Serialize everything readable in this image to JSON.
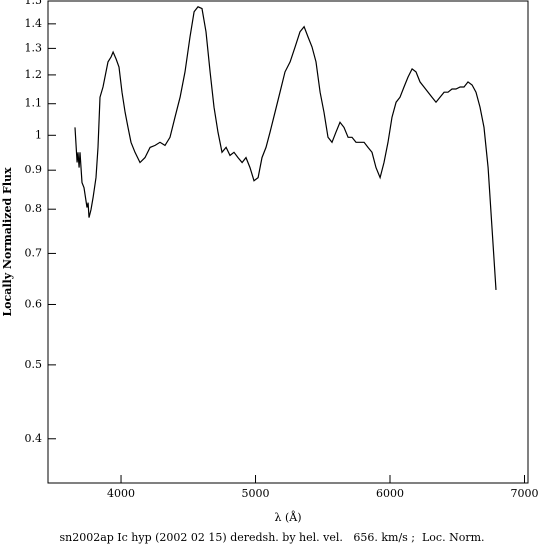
{
  "chart_data": {
    "type": "line",
    "caption": "sn2002ap Ic hyp (2002 02 15) deredsh. by hel. vel.   656. km/s ;  Loc. Norm.",
    "x_label": "λ (Å)",
    "y_label": "Locally Normalized Flux",
    "y_scale": "log",
    "xlim": [
      3457,
      7026
    ],
    "ylim": [
      0.35,
      1.5
    ],
    "xticks": [
      4000,
      5000,
      6000,
      7000
    ],
    "yticks": [
      0.4,
      0.5,
      0.6,
      0.7,
      0.8,
      0.9,
      1,
      1.1,
      1.2,
      1.3,
      1.4,
      1.5
    ],
    "series": [
      {
        "color": "#000000",
        "x": [
          3658,
          3673,
          3680,
          3688,
          3695,
          3710,
          3725,
          3747,
          3755,
          3762,
          3777,
          3792,
          3814,
          3829,
          3844,
          3866,
          3888,
          3903,
          3926,
          3941,
          3963,
          3985,
          4007,
          4030,
          4052,
          4074,
          4104,
          4141,
          4178,
          4216,
          4253,
          4290,
          4327,
          4364,
          4401,
          4439,
          4476,
          4513,
          4543,
          4572,
          4602,
          4632,
          4662,
          4691,
          4721,
          4751,
          4781,
          4810,
          4840,
          4870,
          4900,
          4929,
          4959,
          4989,
          5019,
          5048,
          5078,
          5108,
          5145,
          5182,
          5219,
          5257,
          5294,
          5331,
          5361,
          5390,
          5420,
          5450,
          5480,
          5509,
          5539,
          5569,
          5598,
          5628,
          5658,
          5688,
          5717,
          5747,
          5777,
          5807,
          5836,
          5866,
          5896,
          5926,
          5955,
          5985,
          6015,
          6045,
          6074,
          6104,
          6134,
          6164,
          6193,
          6223,
          6253,
          6283,
          6312,
          6342,
          6372,
          6402,
          6431,
          6461,
          6491,
          6521,
          6550,
          6580,
          6610,
          6639,
          6669,
          6699,
          6729,
          6758,
          6788
        ],
        "values": [
          1.024,
          0.921,
          0.95,
          0.907,
          0.95,
          0.867,
          0.854,
          0.804,
          0.816,
          0.78,
          0.799,
          0.829,
          0.88,
          0.964,
          1.122,
          1.157,
          1.211,
          1.248,
          1.267,
          1.286,
          1.259,
          1.229,
          1.139,
          1.072,
          1.024,
          0.979,
          0.95,
          0.921,
          0.935,
          0.964,
          0.97,
          0.979,
          0.97,
          0.994,
          1.056,
          1.122,
          1.211,
          1.346,
          1.452,
          1.474,
          1.466,
          1.367,
          1.211,
          1.089,
          1.009,
          0.95,
          0.964,
          0.941,
          0.95,
          0.935,
          0.921,
          0.935,
          0.907,
          0.872,
          0.88,
          0.935,
          0.964,
          1.009,
          1.072,
          1.139,
          1.211,
          1.248,
          1.306,
          1.367,
          1.388,
          1.346,
          1.306,
          1.248,
          1.139,
          1.072,
          0.994,
          0.979,
          1.009,
          1.04,
          1.024,
          0.994,
          0.994,
          0.979,
          0.979,
          0.979,
          0.964,
          0.95,
          0.907,
          0.88,
          0.921,
          0.979,
          1.056,
          1.105,
          1.122,
          1.157,
          1.192,
          1.222,
          1.211,
          1.175,
          1.157,
          1.139,
          1.122,
          1.105,
          1.122,
          1.139,
          1.139,
          1.15,
          1.15,
          1.157,
          1.157,
          1.175,
          1.164,
          1.139,
          1.089,
          1.024,
          0.907,
          0.756,
          0.627
        ]
      }
    ]
  }
}
